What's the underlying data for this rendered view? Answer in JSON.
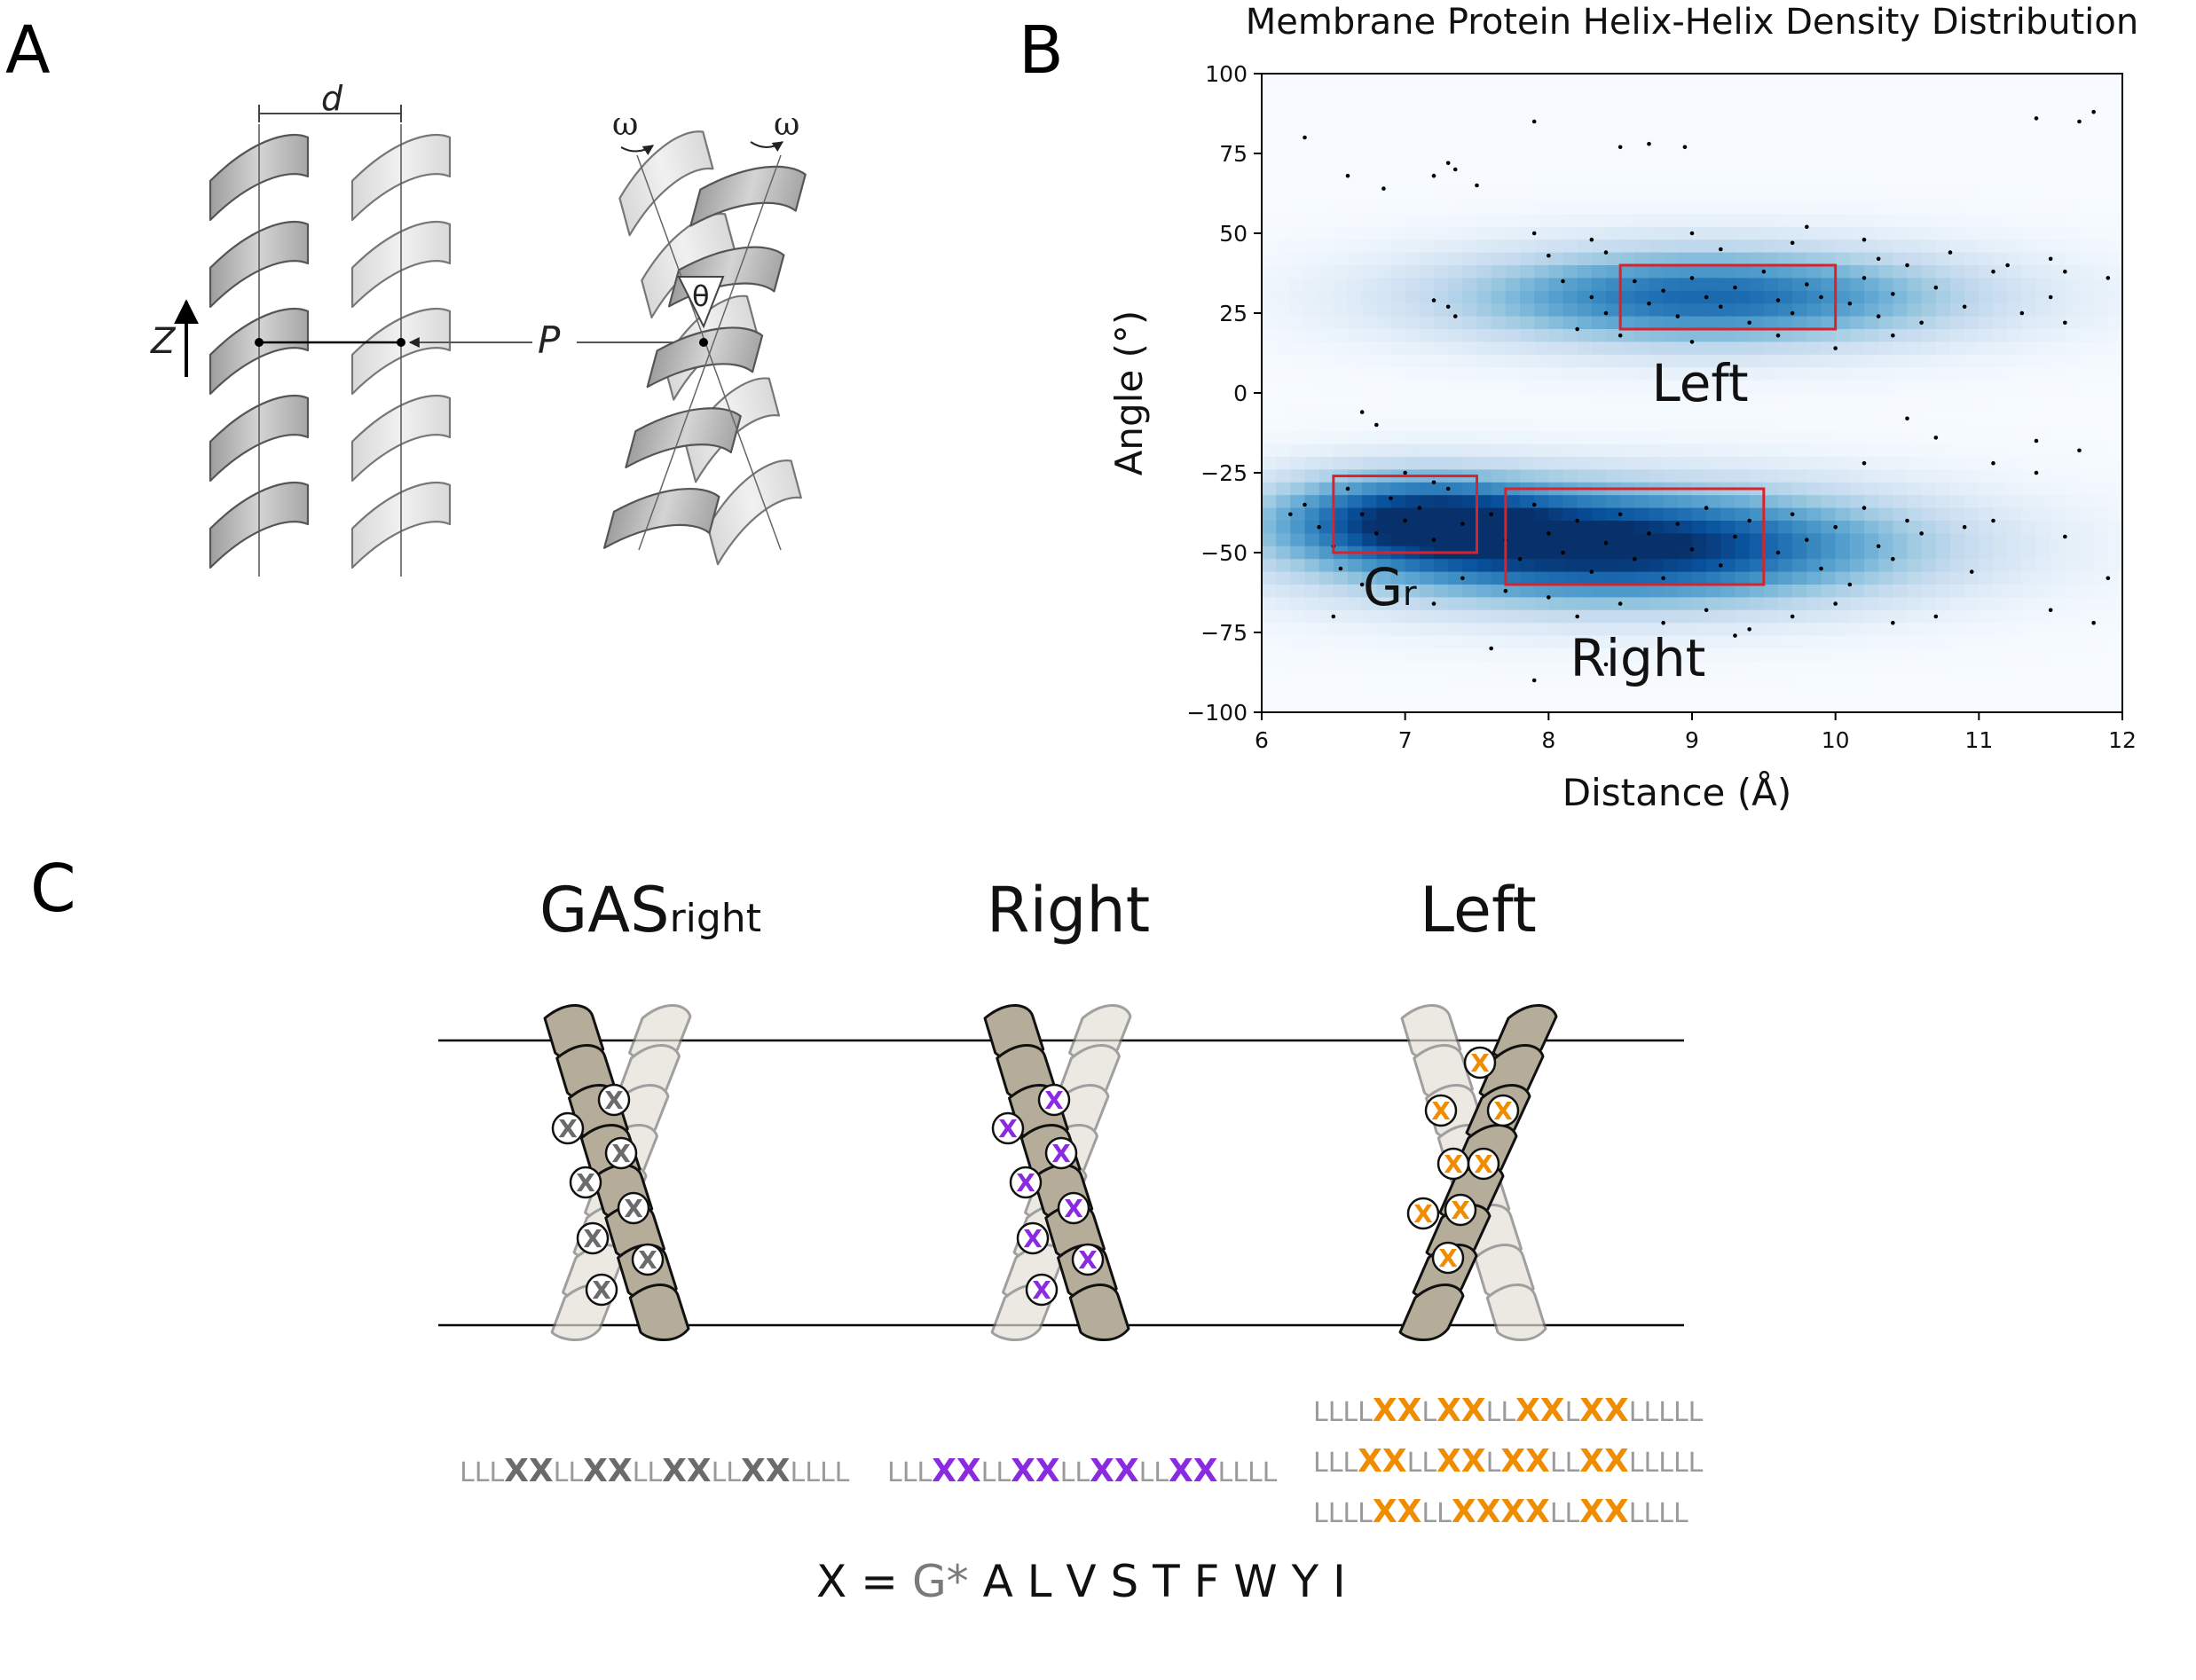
{
  "panels": {
    "a": {
      "letter": "A",
      "labels": {
        "d": "d",
        "z": "Z",
        "p": "P",
        "theta": "θ",
        "omega_left": "ω",
        "omega_right": "ω"
      }
    },
    "b": {
      "letter": "B",
      "regions": {
        "left": "Left",
        "right": "Right",
        "gr_main": "G",
        "gr_sub": "r"
      }
    },
    "c": {
      "letter": "C",
      "columns": {
        "gas": {
          "title": "GAS",
          "title_sub": "right"
        },
        "right": {
          "title": "Right"
        },
        "left": {
          "title": "Left"
        }
      },
      "helix_marker": "X",
      "sequences": {
        "gas": [
          "LLL",
          "XX",
          "LL",
          "XX",
          "LL",
          "XX",
          "LL",
          "XX",
          "LLLL"
        ],
        "right": [
          "LLL",
          "XX",
          "LL",
          "XX",
          "LL",
          "XX",
          "LL",
          "XX",
          "LLLL"
        ],
        "left": [
          [
            "LLLL",
            "XX",
            "L",
            "XX",
            "LL",
            "XX",
            "L",
            "XX",
            "LLLLL"
          ],
          [
            "LLL",
            "XX",
            "LL",
            "XX",
            "L",
            "XX",
            "LL",
            "XX",
            "LLLLL"
          ],
          [
            "LLLL",
            "XX",
            "LL",
            "XX",
            "XX",
            "LL",
            "XX",
            "LLLL"
          ]
        ]
      },
      "legend": {
        "prefix": "X = ",
        "g_part": "G*",
        "rest": " A L V S T F W Y I"
      }
    }
  },
  "colors": {
    "gas_x": "#6b6b6b",
    "right_x": "#8a2be2",
    "left_x": "#f08c00",
    "seq_l": "#9a9a9a",
    "box_red": "#d9232a",
    "density_dark": "#08306b",
    "density_light": "#f7fbff"
  },
  "chart_data": {
    "type": "heatmap",
    "title": "Membrane Protein Helix-Helix Density Distribution",
    "xlabel": "Distance (Å)",
    "ylabel": "Angle (°)",
    "xlim": [
      6,
      12
    ],
    "ylim": [
      -100,
      100
    ],
    "x_ticks": [
      6,
      7,
      8,
      9,
      10,
      11,
      12
    ],
    "y_ticks": [
      100,
      75,
      50,
      25,
      0,
      -25,
      -50,
      -75,
      -100
    ],
    "y_tick_labels": [
      "100",
      "75",
      "50",
      "25",
      "0",
      "−25",
      "−50",
      "−75",
      "−100"
    ],
    "density_clusters": [
      {
        "name": "Left",
        "center_distance": 9.1,
        "center_angle": 30,
        "spread_distance": 1.0,
        "spread_angle": 11,
        "weight": 0.75
      },
      {
        "name": "Right",
        "center_distance": 8.5,
        "center_angle": -48,
        "spread_distance": 1.1,
        "spread_angle": 13,
        "weight": 1.0
      },
      {
        "name": "Gr",
        "center_distance": 7.0,
        "center_angle": -38,
        "spread_distance": 0.55,
        "spread_angle": 10,
        "weight": 0.6
      }
    ],
    "boxes": [
      {
        "name": "Left",
        "x": [
          8.5,
          10.0
        ],
        "y": [
          20,
          40
        ]
      },
      {
        "name": "Right",
        "x": [
          7.7,
          9.5
        ],
        "y": [
          -60,
          -30
        ]
      },
      {
        "name": "Gr",
        "x": [
          6.5,
          7.5
        ],
        "y": [
          -50,
          -26
        ]
      }
    ],
    "points": [
      [
        6.3,
        80
      ],
      [
        6.6,
        68
      ],
      [
        6.85,
        64
      ],
      [
        7.2,
        68
      ],
      [
        7.3,
        72
      ],
      [
        7.35,
        70
      ],
      [
        7.5,
        65
      ],
      [
        7.9,
        85
      ],
      [
        8.5,
        77
      ],
      [
        8.7,
        78
      ],
      [
        8.95,
        77
      ],
      [
        11.8,
        88
      ],
      [
        11.4,
        86
      ],
      [
        11.7,
        85
      ],
      [
        7.2,
        29
      ],
      [
        7.3,
        27
      ],
      [
        7.35,
        24
      ],
      [
        8.1,
        35
      ],
      [
        8.0,
        43
      ],
      [
        7.9,
        50
      ],
      [
        8.3,
        48
      ],
      [
        8.4,
        44
      ],
      [
        10.8,
        44
      ],
      [
        11.5,
        42
      ],
      [
        11.6,
        38
      ],
      [
        11.9,
        36
      ],
      [
        11.2,
        40
      ],
      [
        8.3,
        30
      ],
      [
        8.4,
        25
      ],
      [
        8.6,
        35
      ],
      [
        8.7,
        28
      ],
      [
        8.8,
        32
      ],
      [
        8.9,
        24
      ],
      [
        9.0,
        36
      ],
      [
        9.1,
        30
      ],
      [
        9.2,
        27
      ],
      [
        9.3,
        33
      ],
      [
        9.4,
        22
      ],
      [
        9.5,
        38
      ],
      [
        9.6,
        29
      ],
      [
        9.7,
        25
      ],
      [
        9.8,
        34
      ],
      [
        9.9,
        30
      ],
      [
        10.1,
        28
      ],
      [
        10.2,
        36
      ],
      [
        10.3,
        24
      ],
      [
        10.4,
        31
      ],
      [
        10.5,
        40
      ],
      [
        10.6,
        22
      ],
      [
        10.7,
        33
      ],
      [
        10.9,
        27
      ],
      [
        11.1,
        38
      ],
      [
        11.3,
        25
      ],
      [
        11.5,
        30
      ],
      [
        11.6,
        22
      ],
      [
        8.2,
        20
      ],
      [
        8.5,
        18
      ],
      [
        9.0,
        16
      ],
      [
        9.6,
        18
      ],
      [
        10.0,
        14
      ],
      [
        10.4,
        18
      ],
      [
        9.2,
        45
      ],
      [
        9.7,
        47
      ],
      [
        10.2,
        48
      ],
      [
        9.0,
        50
      ],
      [
        9.8,
        52
      ],
      [
        10.3,
        42
      ],
      [
        6.7,
        -6
      ],
      [
        6.8,
        -10
      ],
      [
        10.5,
        -8
      ],
      [
        11.4,
        -15
      ],
      [
        11.7,
        -18
      ],
      [
        10.7,
        -14
      ],
      [
        10.2,
        -22
      ],
      [
        11.1,
        -22
      ],
      [
        11.4,
        -25
      ],
      [
        6.3,
        -35
      ],
      [
        6.4,
        -42
      ],
      [
        6.5,
        -48
      ],
      [
        6.6,
        -30
      ],
      [
        6.7,
        -38
      ],
      [
        6.8,
        -44
      ],
      [
        6.9,
        -33
      ],
      [
        7.0,
        -40
      ],
      [
        7.1,
        -36
      ],
      [
        7.2,
        -46
      ],
      [
        7.3,
        -30
      ],
      [
        7.4,
        -41
      ],
      [
        6.55,
        -55
      ],
      [
        6.7,
        -60
      ],
      [
        6.5,
        -70
      ],
      [
        6.2,
        -38
      ],
      [
        7.0,
        -25
      ],
      [
        7.2,
        -28
      ],
      [
        7.6,
        -38
      ],
      [
        7.7,
        -46
      ],
      [
        7.8,
        -52
      ],
      [
        7.9,
        -35
      ],
      [
        8.0,
        -44
      ],
      [
        8.1,
        -50
      ],
      [
        8.2,
        -40
      ],
      [
        8.3,
        -56
      ],
      [
        8.4,
        -47
      ],
      [
        8.5,
        -38
      ],
      [
        8.6,
        -52
      ],
      [
        8.7,
        -44
      ],
      [
        8.8,
        -58
      ],
      [
        8.9,
        -41
      ],
      [
        9.0,
        -49
      ],
      [
        9.1,
        -36
      ],
      [
        9.2,
        -54
      ],
      [
        9.3,
        -45
      ],
      [
        9.4,
        -40
      ],
      [
        9.6,
        -50
      ],
      [
        9.7,
        -38
      ],
      [
        9.8,
        -46
      ],
      [
        9.9,
        -55
      ],
      [
        10.0,
        -42
      ],
      [
        10.1,
        -60
      ],
      [
        10.2,
        -36
      ],
      [
        10.3,
        -48
      ],
      [
        10.4,
        -52
      ],
      [
        10.5,
        -40
      ],
      [
        10.6,
        -44
      ],
      [
        8.0,
        -64
      ],
      [
        8.2,
        -70
      ],
      [
        8.5,
        -66
      ],
      [
        8.8,
        -72
      ],
      [
        9.1,
        -68
      ],
      [
        9.4,
        -74
      ],
      [
        9.7,
        -70
      ],
      [
        10.0,
        -66
      ],
      [
        10.4,
        -72
      ],
      [
        10.7,
        -70
      ],
      [
        7.7,
        -62
      ],
      [
        7.4,
        -58
      ],
      [
        7.2,
        -66
      ],
      [
        7.6,
        -80
      ],
      [
        7.9,
        -90
      ],
      [
        8.4,
        -85
      ],
      [
        9.3,
        -76
      ],
      [
        10.9,
        -42
      ],
      [
        11.1,
        -40
      ],
      [
        11.6,
        -45
      ],
      [
        11.9,
        -58
      ],
      [
        11.5,
        -68
      ],
      [
        11.8,
        -72
      ],
      [
        10.95,
        -56
      ]
    ]
  }
}
